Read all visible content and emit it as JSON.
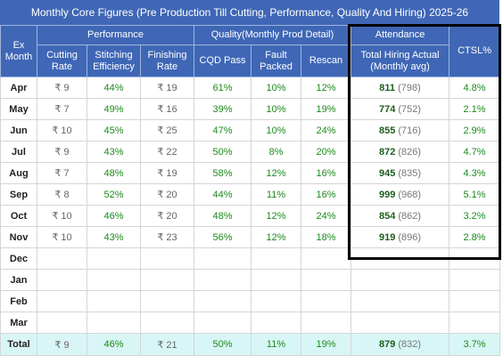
{
  "title": "Monthly Core Figures (Pre Production Till Cutting, Performance, Quality And Hiring) 2025-26",
  "header": {
    "month": "Ex Month",
    "groups": [
      "Performance",
      "Quality(Monthly Prod Detail)",
      "Attendance",
      "CTSL%"
    ],
    "columns": [
      "Cutting Rate",
      "Stitching Efficiency",
      "Finishing Rate",
      "CQD Pass",
      "Fault Packed",
      "Rescan",
      "Total Hiring Actual (Monthly avg)"
    ]
  },
  "rows": [
    {
      "month": "Apr",
      "cells": [
        "₹ 9",
        "44%",
        "₹ 19",
        "61%",
        "10%",
        "12%"
      ],
      "hiring": "811",
      "hiring_avg": "(798)",
      "ctsl": "4.8%"
    },
    {
      "month": "May",
      "cells": [
        "₹ 7",
        "49%",
        "₹ 16",
        "39%",
        "10%",
        "19%"
      ],
      "hiring": "774",
      "hiring_avg": "(752)",
      "ctsl": "2.1%"
    },
    {
      "month": "Jun",
      "cells": [
        "₹ 10",
        "45%",
        "₹ 25",
        "47%",
        "10%",
        "24%"
      ],
      "hiring": "855",
      "hiring_avg": "(716)",
      "ctsl": "2.9%"
    },
    {
      "month": "Jul",
      "cells": [
        "₹ 9",
        "43%",
        "₹ 22",
        "50%",
        "8%",
        "20%"
      ],
      "hiring": "872",
      "hiring_avg": "(826)",
      "ctsl": "4.7%"
    },
    {
      "month": "Aug",
      "cells": [
        "₹ 7",
        "48%",
        "₹ 19",
        "58%",
        "12%",
        "16%"
      ],
      "hiring": "945",
      "hiring_avg": "(835)",
      "ctsl": "4.3%"
    },
    {
      "month": "Sep",
      "cells": [
        "₹ 8",
        "52%",
        "₹ 20",
        "44%",
        "11%",
        "16%"
      ],
      "hiring": "999",
      "hiring_avg": "(968)",
      "ctsl": "5.1%"
    },
    {
      "month": "Oct",
      "cells": [
        "₹ 10",
        "46%",
        "₹ 20",
        "48%",
        "12%",
        "24%"
      ],
      "hiring": "854",
      "hiring_avg": "(862)",
      "ctsl": "3.2%"
    },
    {
      "month": "Nov",
      "cells": [
        "₹ 10",
        "43%",
        "₹ 23",
        "56%",
        "12%",
        "18%"
      ],
      "hiring": "919",
      "hiring_avg": "(896)",
      "ctsl": "2.8%"
    },
    {
      "month": "Dec"
    },
    {
      "month": "Jan"
    },
    {
      "month": "Feb"
    },
    {
      "month": "Mar"
    }
  ],
  "total": {
    "month": "Total",
    "cells": [
      "₹ 9",
      "46%",
      "₹ 21",
      "50%",
      "11%",
      "19%"
    ],
    "hiring": "879",
    "hiring_avg": "(832)",
    "ctsl": "3.7%"
  }
}
